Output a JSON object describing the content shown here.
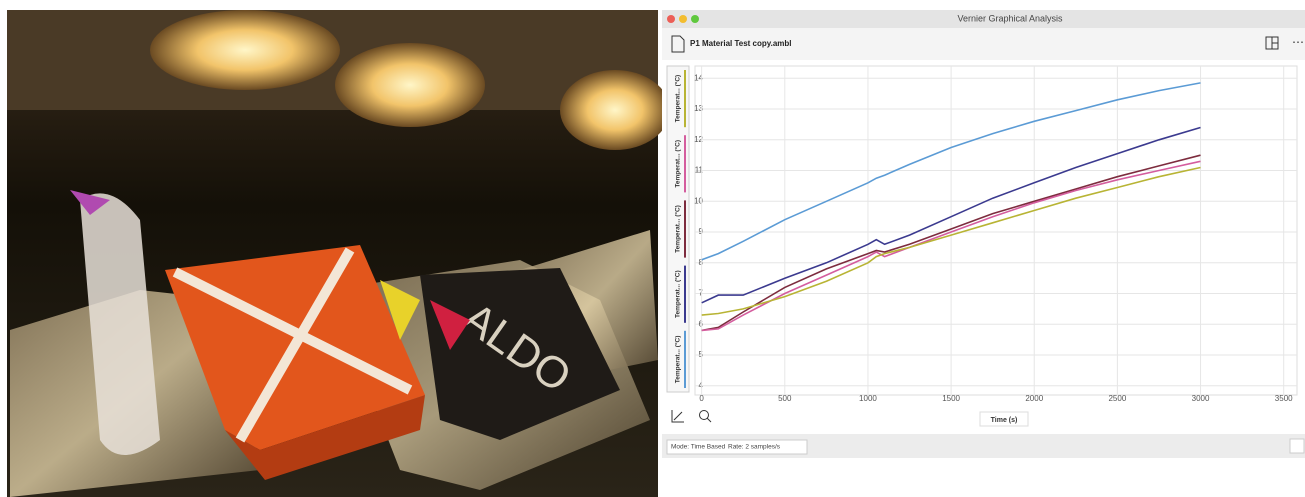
{
  "photo": {
    "box_text": "ALDO"
  },
  "window": {
    "title": "Vernier Graphical Analysis",
    "file": "P1 Material Test copy.ambl"
  },
  "chart_data": {
    "type": "line",
    "x_label": "Time (s)",
    "x": [
      0,
      100,
      250,
      500,
      750,
      1000,
      1050,
      1100,
      1250,
      1500,
      1750,
      2000,
      2250,
      2500,
      2750,
      3000
    ],
    "series": [
      {
        "name": "Temperat... (°C)",
        "color": "#5b9bd5",
        "values": [
          8.1,
          8.3,
          8.7,
          9.4,
          10.0,
          10.6,
          10.75,
          10.85,
          11.2,
          11.75,
          12.2,
          12.6,
          12.95,
          13.3,
          13.6,
          13.85
        ]
      },
      {
        "name": "Temperat... (°C)",
        "color": "#3b3a8f",
        "values": [
          6.7,
          6.95,
          6.95,
          7.5,
          8.0,
          8.6,
          8.75,
          8.6,
          8.9,
          9.5,
          10.1,
          10.6,
          11.1,
          11.55,
          12.0,
          12.4
        ]
      },
      {
        "name": "Temperat... (°C)",
        "color": "#7d2c3e",
        "values": [
          5.8,
          5.9,
          6.4,
          7.2,
          7.8,
          8.3,
          8.4,
          8.35,
          8.6,
          9.1,
          9.6,
          10.0,
          10.4,
          10.8,
          11.15,
          11.5
        ]
      },
      {
        "name": "Temperat... (°C)",
        "color": "#d45d9e",
        "values": [
          5.8,
          5.85,
          6.3,
          7.0,
          7.6,
          8.2,
          8.35,
          8.2,
          8.5,
          9.0,
          9.5,
          9.95,
          10.35,
          10.7,
          11.0,
          11.3
        ]
      },
      {
        "name": "Temperat... (°C)",
        "color": "#b8b434",
        "values": [
          6.3,
          6.35,
          6.5,
          6.9,
          7.4,
          8.0,
          8.2,
          8.3,
          8.5,
          8.9,
          9.3,
          9.7,
          10.1,
          10.45,
          10.8,
          11.1
        ]
      }
    ],
    "xlim": [
      -40,
      3580
    ],
    "xticks": [
      0,
      500,
      1000,
      1500,
      2000,
      2500,
      3000,
      3500
    ],
    "ylim": [
      3.7,
      14.4
    ],
    "yticks": [
      4,
      5,
      6,
      7,
      8,
      9,
      10,
      11,
      12,
      13,
      14
    ],
    "grid": true
  },
  "status": {
    "mode": "Mode: Time Based",
    "rate": "Rate: 2 samples/s"
  }
}
